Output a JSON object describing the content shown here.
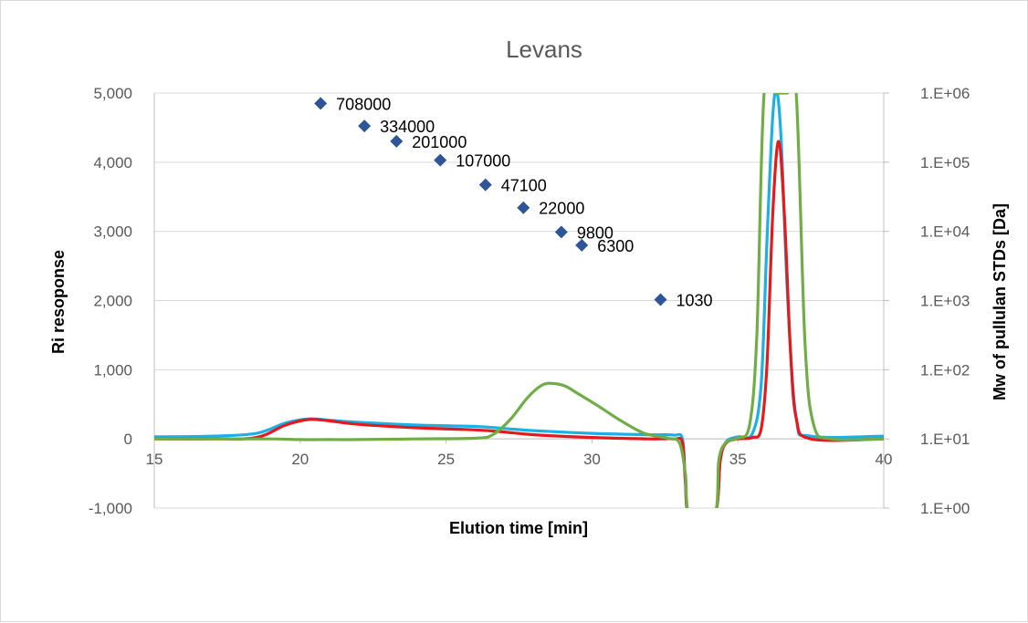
{
  "chart_data": {
    "type": "line",
    "title": "Levans",
    "xlabel": "Elution time [min]",
    "ylabel": "Ri resoponse",
    "y2label": "Mw of pullulan STDs [Da]",
    "xlim": [
      15,
      40
    ],
    "ylim": [
      -1000,
      5000
    ],
    "y2lim": [
      1,
      1000000
    ],
    "y2scale": "log",
    "grid": "horizontal",
    "x_ticks": [
      "15",
      "20",
      "25",
      "30",
      "35",
      "40"
    ],
    "y_ticks": [
      "-1,000",
      "0",
      "1,000",
      "2,000",
      "3,000",
      "4,000",
      "5,000"
    ],
    "y2_ticks": [
      "1.E+00",
      "1.E+01",
      "1.E+02",
      "1.E+03",
      "1.E+04",
      "1.E+05",
      "1.E+06"
    ],
    "colors": {
      "red": "#e41a1c",
      "blue": "#1ab0e8",
      "green": "#70ad47",
      "marker": "#2e5597"
    },
    "series": [
      {
        "color": "#1ab0e8",
        "x": [
          15,
          17,
          18.5,
          19.5,
          20.3,
          21,
          22,
          24,
          26,
          27,
          28,
          30,
          32,
          32.8,
          33.1,
          33.2,
          33.35,
          34.2,
          34.4,
          34.6,
          35,
          35.5,
          35.8,
          36.0,
          36.2,
          36.35,
          36.5,
          36.7,
          37.0,
          37.5,
          40
        ],
        "y": [
          30,
          40,
          80,
          230,
          290,
          270,
          240,
          200,
          180,
          150,
          120,
          80,
          60,
          55,
          0,
          -600,
          -1100,
          -1100,
          -300,
          -40,
          30,
          80,
          800,
          2900,
          4700,
          5000,
          4200,
          2100,
          300,
          40,
          40
        ]
      },
      {
        "color": "#e41a1c",
        "x": [
          15,
          17,
          18.5,
          19.5,
          20.3,
          21,
          22,
          24,
          26,
          27,
          28,
          30,
          32,
          32.8,
          33.1,
          33.2,
          33.35,
          34.2,
          34.4,
          34.6,
          35,
          35.5,
          35.8,
          36.0,
          36.2,
          36.4,
          36.6,
          36.8,
          37.0,
          37.5,
          40
        ],
        "y": [
          0,
          0,
          20,
          200,
          280,
          260,
          210,
          160,
          130,
          100,
          60,
          20,
          0,
          0,
          -50,
          -600,
          -1100,
          -1100,
          -300,
          -60,
          0,
          20,
          150,
          1100,
          3300,
          4300,
          3200,
          1300,
          300,
          0,
          0
        ]
      },
      {
        "color": "#70ad47",
        "x": [
          15,
          17,
          19,
          20,
          21,
          22,
          24,
          26,
          26.6,
          27.2,
          27.8,
          28.3,
          28.7,
          29.1,
          29.5,
          30.2,
          31,
          31.8,
          32.6,
          33.0,
          33.2,
          33.35,
          34.2,
          34.35,
          34.6,
          35,
          35.4,
          35.65,
          35.9,
          36.3,
          36.7,
          37.0,
          37.3,
          37.6,
          38.2,
          40
        ],
        "y": [
          0,
          0,
          0,
          -10,
          -10,
          -10,
          0,
          10,
          60,
          280,
          600,
          780,
          800,
          760,
          660,
          480,
          260,
          80,
          10,
          -60,
          -500,
          -1100,
          -1100,
          -300,
          -50,
          10,
          200,
          1500,
          5000,
          5000,
          5000,
          5000,
          1400,
          200,
          0,
          0
        ]
      }
    ],
    "markers": {
      "color": "#2e5597",
      "points": [
        {
          "x": 20.7,
          "y": 708000,
          "label": "708000"
        },
        {
          "x": 22.2,
          "y": 334000,
          "label": "334000"
        },
        {
          "x": 23.3,
          "y": 201000,
          "label": "201000"
        },
        {
          "x": 24.8,
          "y": 107000,
          "label": "107000"
        },
        {
          "x": 26.35,
          "y": 47100,
          "label": "47100"
        },
        {
          "x": 27.65,
          "y": 22000,
          "label": "22000"
        },
        {
          "x": 28.95,
          "y": 9800,
          "label": "9800"
        },
        {
          "x": 29.65,
          "y": 6300,
          "label": "6300"
        },
        {
          "x": 32.35,
          "y": 1030,
          "label": "1030"
        }
      ]
    }
  }
}
